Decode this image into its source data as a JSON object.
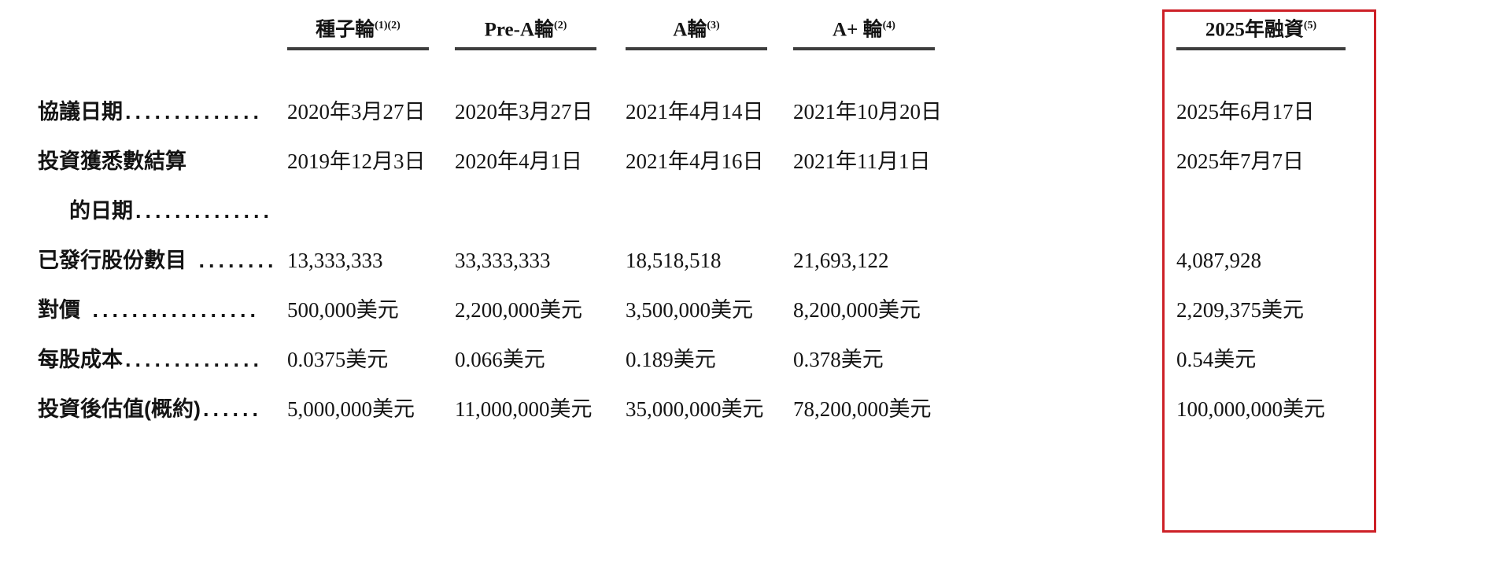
{
  "accent": {
    "highlight_box_color": "#cd2027",
    "rule_color": "#3d3d3d"
  },
  "table": {
    "columns": [
      {
        "label": "種子輪",
        "superscript": "(1)(2)",
        "highlighted": false
      },
      {
        "label": "Pre-A輪",
        "superscript": "(2)",
        "highlighted": false
      },
      {
        "label": "A輪",
        "superscript": "(3)",
        "highlighted": false
      },
      {
        "label": "A+ 輪",
        "superscript": "(4)",
        "highlighted": false
      },
      {
        "label": "2025年融資",
        "superscript": "(5)",
        "highlighted": true
      }
    ],
    "rows": [
      {
        "label": "協議日期",
        "leader": "..............",
        "indent": false,
        "values": [
          "2020年3月27日",
          "2020年3月27日",
          "2021年4月14日",
          "2021年10月20日",
          "2025年6月17日"
        ]
      },
      {
        "label": "投資獲悉數結算",
        "leader": "",
        "indent": false,
        "values": [
          "2019年12月3日",
          "2020年4月1日",
          "2021年4月16日",
          "2021年11月1日",
          "2025年7月7日"
        ]
      },
      {
        "label": "的日期",
        "leader": "..............",
        "indent": true,
        "values": [
          "",
          "",
          "",
          "",
          ""
        ]
      },
      {
        "label": "已發行股份數目",
        "leader": " ........",
        "indent": false,
        "values": [
          "13,333,333",
          "33,333,333",
          "18,518,518",
          "21,693,122",
          "4,087,928"
        ]
      },
      {
        "label": "對價",
        "leader": " .................",
        "indent": false,
        "values": [
          "500,000美元",
          "2,200,000美元",
          "3,500,000美元",
          "8,200,000美元",
          "2,209,375美元"
        ]
      },
      {
        "label": "每股成本",
        "leader": "..............",
        "indent": false,
        "values": [
          "0.0375美元",
          "0.066美元",
          "0.189美元",
          "0.378美元",
          "0.54美元"
        ]
      },
      {
        "label": "投資後估值(概約)",
        "leader": "......",
        "indent": false,
        "values": [
          "5,000,000美元",
          "11,000,000美元",
          "35,000,000美元",
          "78,200,000美元",
          "100,000,000美元"
        ]
      }
    ]
  }
}
